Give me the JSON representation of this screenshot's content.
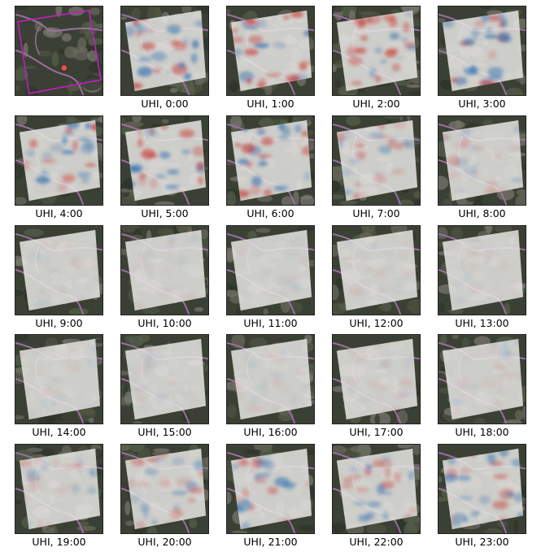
{
  "figure": {
    "locator": {
      "marker_color": "#e05050",
      "outline_color": "#c020c0"
    },
    "colors": {
      "warm": "#c8403a",
      "cool": "#2f6fae",
      "overlay": "#e8e6e4",
      "background": "#3b4034"
    },
    "panels": [
      {
        "label": "UHI, 0:00",
        "intensity": 0.8
      },
      {
        "label": "UHI, 1:00",
        "intensity": 0.85
      },
      {
        "label": "UHI, 2:00",
        "intensity": 0.8
      },
      {
        "label": "UHI, 3:00",
        "intensity": 0.85
      },
      {
        "label": "UHI, 4:00",
        "intensity": 0.85
      },
      {
        "label": "UHI, 5:00",
        "intensity": 0.9
      },
      {
        "label": "UHI, 6:00",
        "intensity": 0.8
      },
      {
        "label": "UHI, 7:00",
        "intensity": 0.45
      },
      {
        "label": "UHI, 8:00",
        "intensity": 0.3
      },
      {
        "label": "UHI, 9:00",
        "intensity": 0.1
      },
      {
        "label": "UHI, 10:00",
        "intensity": 0.08
      },
      {
        "label": "UHI, 11:00",
        "intensity": 0.08
      },
      {
        "label": "UHI, 12:00",
        "intensity": 0.08
      },
      {
        "label": "UHI, 13:00",
        "intensity": 0.08
      },
      {
        "label": "UHI, 14:00",
        "intensity": 0.08
      },
      {
        "label": "UHI, 15:00",
        "intensity": 0.1
      },
      {
        "label": "UHI, 16:00",
        "intensity": 0.12
      },
      {
        "label": "UHI, 17:00",
        "intensity": 0.12
      },
      {
        "label": "UHI, 18:00",
        "intensity": 0.15
      },
      {
        "label": "UHI, 19:00",
        "intensity": 0.3
      },
      {
        "label": "UHI, 20:00",
        "intensity": 0.5
      },
      {
        "label": "UHI, 21:00",
        "intensity": 0.65
      },
      {
        "label": "UHI, 22:00",
        "intensity": 0.6
      },
      {
        "label": "UHI, 23:00",
        "intensity": 0.6
      }
    ]
  }
}
